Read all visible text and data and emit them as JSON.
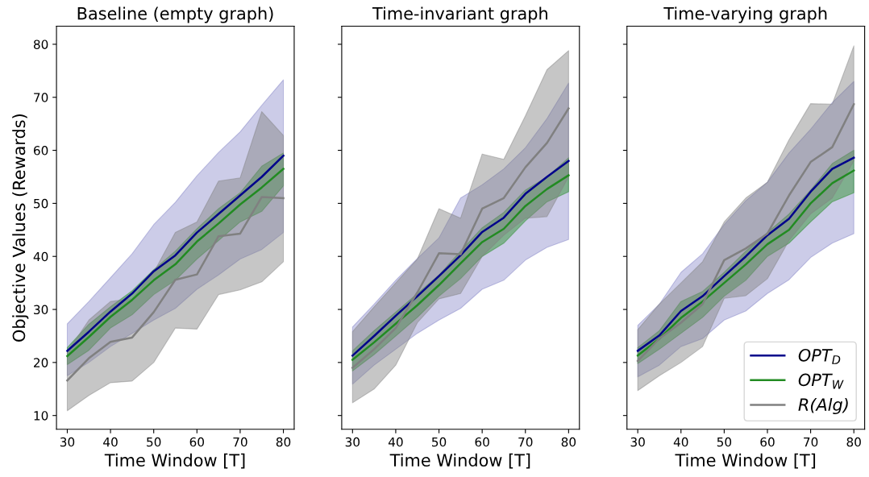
{
  "chart_data": [
    {
      "type": "line",
      "title": "Baseline (empty graph)",
      "xlabel": "Time Window [T]",
      "ylabel": "Objective Values (Rewards)",
      "x": [
        30,
        35,
        40,
        45,
        50,
        55,
        60,
        65,
        70,
        75,
        80
      ],
      "xlim": [
        27.5,
        82.5
      ],
      "xticks": [
        30,
        40,
        50,
        60,
        70,
        80
      ],
      "ylim": [
        7.4,
        83.4
      ],
      "yticks": [
        10,
        20,
        30,
        40,
        50,
        60,
        70,
        80
      ],
      "series": [
        {
          "color": "#00008b",
          "values": [
            22.2,
            25.8,
            29.6,
            33,
            37.2,
            40.2,
            44.5,
            48,
            51.5,
            55,
            59
          ],
          "lower": [
            17.5,
            20,
            23,
            25.5,
            28,
            30.2,
            33.8,
            36.5,
            39.5,
            41.3,
            44.5
          ],
          "upper": [
            27.3,
            31.5,
            36,
            40.5,
            46,
            50.2,
            55.2,
            59.6,
            63.5,
            68.5,
            73.3
          ]
        },
        {
          "color": "#228b22",
          "values": [
            21.2,
            24.8,
            28.6,
            31.8,
            35.5,
            38.5,
            42.8,
            46.2,
            49.8,
            53,
            56.5
          ],
          "lower": [
            19.6,
            22.3,
            26.5,
            29,
            32.8,
            35.5,
            39.5,
            43,
            46.5,
            48.5,
            53.3
          ],
          "upper": [
            22.8,
            27.2,
            30.5,
            33.5,
            37.5,
            41,
            45.2,
            49,
            52,
            57,
            59.5
          ]
        },
        {
          "color": "#808080",
          "values": [
            16.6,
            20.8,
            23.9,
            24.7,
            29.5,
            35.6,
            36.6,
            43.8,
            44.3,
            51.2,
            51
          ],
          "lower": [
            10.9,
            13.8,
            16.2,
            16.5,
            20,
            26.5,
            26.3,
            32.8,
            33.7,
            35.2,
            39
          ],
          "upper": [
            22,
            28,
            31.5,
            32,
            37,
            44.5,
            46.5,
            54.2,
            54.8,
            67.3,
            62.8
          ]
        }
      ]
    },
    {
      "type": "line",
      "title": "Time-invariant graph",
      "xlabel": "Time Window [T]",
      "tick_labels": "x",
      "x": [
        30,
        35,
        40,
        45,
        50,
        55,
        60,
        65,
        70,
        75,
        80
      ],
      "xlim": [
        27.5,
        82.5
      ],
      "xticks": [
        30,
        40,
        50,
        60,
        70,
        80
      ],
      "ylim": [
        7.4,
        83.4
      ],
      "yticks": [
        10,
        20,
        30,
        40,
        50,
        60,
        70,
        80
      ],
      "series": [
        {
          "color": "#00008b",
          "values": [
            21.3,
            25,
            28.8,
            32.5,
            36.3,
            40.2,
            44.6,
            47.3,
            51.8,
            55,
            58
          ],
          "lower": [
            15.9,
            19.5,
            22.5,
            25.5,
            28,
            30.2,
            33.8,
            35.5,
            39.3,
            41.7,
            43.2
          ],
          "upper": [
            26.7,
            31,
            35.5,
            39.6,
            43.5,
            51,
            53.5,
            56.5,
            60.5,
            66,
            72.7
          ]
        },
        {
          "color": "#228b22",
          "values": [
            20.5,
            23.8,
            27.3,
            30.8,
            34.6,
            38.7,
            42.7,
            45.2,
            49.5,
            52.7,
            55.3
          ],
          "lower": [
            18.4,
            21.5,
            25,
            28.5,
            32.5,
            35.8,
            40,
            42.5,
            46.7,
            50.3,
            52.2
          ],
          "upper": [
            22.2,
            26,
            29.5,
            33,
            36.5,
            41,
            45.4,
            48.3,
            52.5,
            55,
            58.6
          ]
        },
        {
          "color": "#808080",
          "values": [
            19,
            22.5,
            26.5,
            33.2,
            40.6,
            40.4,
            49,
            51,
            56.8,
            61.4,
            67.9
          ],
          "lower": [
            12.4,
            15,
            19.5,
            27.5,
            32,
            33,
            40,
            44,
            47.2,
            47.5,
            55
          ],
          "upper": [
            25.8,
            30.5,
            35,
            39.5,
            49,
            47.2,
            59.3,
            58.3,
            66.5,
            75.2,
            78.8
          ]
        }
      ]
    },
    {
      "type": "line",
      "title": "Time-varying graph",
      "xlabel": "Time Window [T]",
      "tick_labels": "x",
      "legend": "lower right",
      "x": [
        30,
        35,
        40,
        45,
        50,
        55,
        60,
        65,
        70,
        75,
        80
      ],
      "xlim": [
        27.5,
        82.5
      ],
      "xticks": [
        30,
        40,
        50,
        60,
        70,
        80
      ],
      "ylim": [
        7.4,
        83.4
      ],
      "yticks": [
        10,
        20,
        30,
        40,
        50,
        60,
        70,
        80
      ],
      "series": [
        {
          "name": "OPT$_{D}$",
          "color": "#00008b",
          "values": [
            22.2,
            25.1,
            29.7,
            32.5,
            36.3,
            40,
            44,
            47.1,
            52.2,
            56.5,
            58.6
          ],
          "lower": [
            17.3,
            19.5,
            23,
            24.5,
            28,
            29.7,
            33,
            35.6,
            39.8,
            42.5,
            44.3
          ],
          "upper": [
            27,
            31,
            37,
            40.5,
            46,
            50.5,
            54,
            59.5,
            64,
            69,
            73
          ]
        },
        {
          "name": "OPT$_{W}$",
          "color": "#228b22",
          "values": [
            21.3,
            24.5,
            28.4,
            31.5,
            35,
            38.5,
            42.3,
            45,
            50,
            53.8,
            56.2
          ],
          "lower": [
            19.8,
            22.5,
            25.5,
            28.5,
            32.5,
            35.5,
            40,
            42.5,
            46.5,
            50.3,
            52
          ],
          "upper": [
            22.8,
            26,
            31.5,
            33.4,
            37,
            41,
            44.5,
            48,
            52.5,
            57.5,
            60
          ]
        },
        {
          "name": "R(Alg)",
          "color": "#808080",
          "values": [
            20.3,
            24.5,
            27.5,
            31,
            39.3,
            41.5,
            44.3,
            51.5,
            57.8,
            60.6,
            68.7
          ],
          "lower": [
            14.7,
            17.5,
            20,
            23,
            32.1,
            32.6,
            35.8,
            43,
            48,
            51,
            58
          ],
          "upper": [
            26.2,
            31,
            35,
            39,
            46.5,
            51,
            54,
            62,
            68.8,
            68.7,
            79.7
          ]
        }
      ]
    }
  ]
}
